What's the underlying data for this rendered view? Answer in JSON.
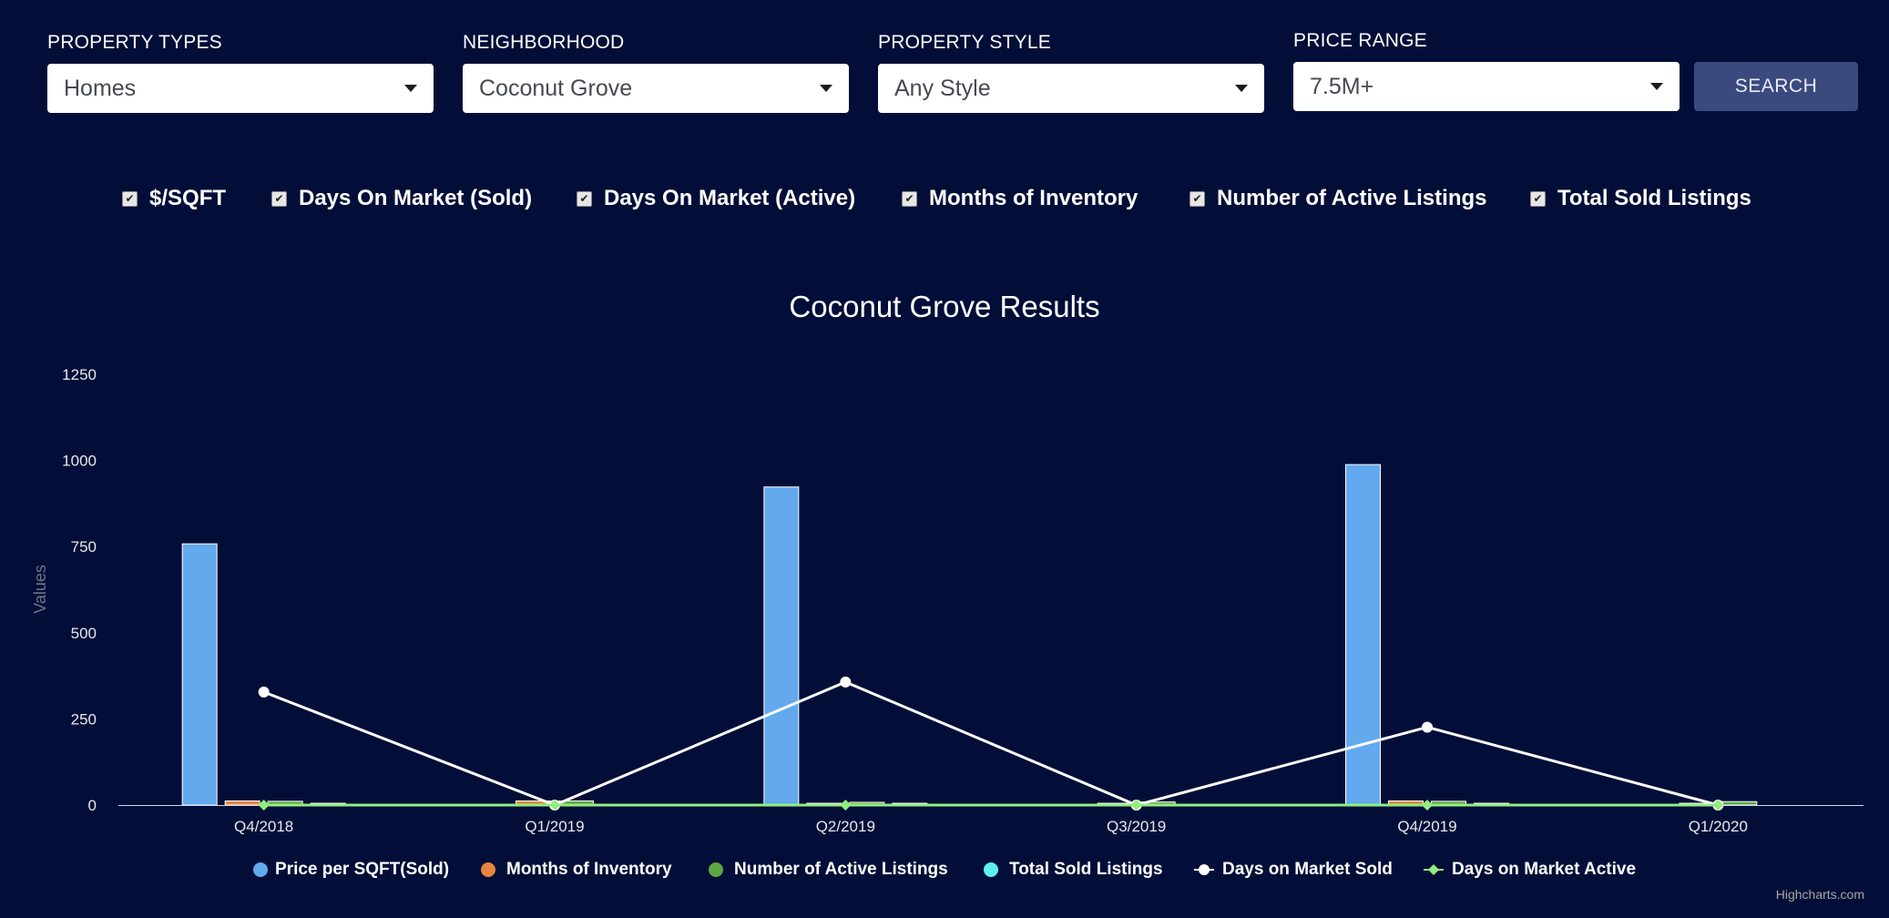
{
  "filters": {
    "property_types": {
      "label": "PROPERTY TYPES",
      "value": "Homes"
    },
    "neighborhood": {
      "label": "NEIGHBORHOOD",
      "value": "Coconut Grove"
    },
    "property_style": {
      "label": "PROPERTY STYLE",
      "value": "Any Style"
    },
    "price_range": {
      "label": "PRICE RANGE",
      "value": "7.5M+"
    },
    "search_label": "SEARCH"
  },
  "toggles": [
    {
      "label": "$/SQFT",
      "checked": true
    },
    {
      "label": "Days On Market (Sold)",
      "checked": true
    },
    {
      "label": "Days On Market (Active)",
      "checked": true
    },
    {
      "label": "Months of Inventory",
      "checked": true
    },
    {
      "label": "Number of Active Listings",
      "checked": true
    },
    {
      "label": "Total Sold Listings",
      "checked": true
    }
  ],
  "chart_data": {
    "type": "bar",
    "title": "Coconut Grove Results",
    "ylabel": "Values",
    "ylim": [
      0,
      1250
    ],
    "yticks": [
      0,
      250,
      500,
      750,
      1000,
      1250
    ],
    "categories": [
      "Q4/2018",
      "Q1/2019",
      "Q2/2019",
      "Q3/2019",
      "Q4/2019",
      "Q1/2020"
    ],
    "series": [
      {
        "name": "Price per SQFT(Sold)",
        "type": "column",
        "color": "#63a9ee",
        "values": [
          758,
          0,
          923,
          0,
          988,
          0
        ]
      },
      {
        "name": "Months of Inventory",
        "type": "column",
        "color": "#e8843f",
        "values": [
          12,
          12,
          5,
          4,
          12,
          4
        ]
      },
      {
        "name": "Number of Active Listings",
        "type": "column",
        "color": "#5fa543",
        "values": [
          11,
          12,
          8,
          9,
          11,
          10
        ]
      },
      {
        "name": "Total Sold Listings",
        "type": "column",
        "color": "#5cf0f0",
        "values": [
          1,
          0,
          1,
          0,
          1,
          0
        ]
      },
      {
        "name": "Days on Market Sold",
        "type": "line",
        "color": "#ffffff",
        "values": [
          328,
          0,
          357,
          0,
          226,
          0
        ]
      },
      {
        "name": "Days on Market Active",
        "type": "line",
        "color": "#90ee7e",
        "values": [
          0,
          0,
          0,
          0,
          0,
          0
        ]
      }
    ],
    "legend_position": "bottom",
    "grid": false
  },
  "credits": "Highcharts.com"
}
